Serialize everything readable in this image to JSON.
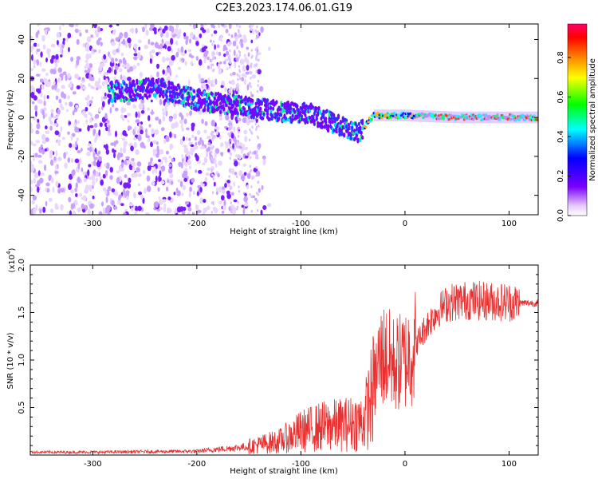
{
  "figure": {
    "title": "C2E3.2023.174.06.01.G19"
  },
  "chart_data": [
    {
      "type": "heatmap",
      "title": "C2E3.2023.174.06.01.G19",
      "xlabel": "Height of straight line (km)",
      "ylabel": "Frequency (Hz)",
      "xlim": [
        -360,
        128
      ],
      "ylim": [
        -50,
        48
      ],
      "xticks": [
        -300,
        -200,
        -100,
        0,
        100
      ],
      "yticks": [
        -40,
        -20,
        0,
        20,
        40
      ],
      "colorbar": {
        "label": "Normalized spectral amplitude",
        "range": [
          0,
          0.97
        ],
        "ticks": [
          "0.0",
          "0.2",
          "0.4",
          "0.6",
          "0.8"
        ],
        "colormap": [
          "#ffffff",
          "#7b00ff",
          "#0000ff",
          "#00ffff",
          "#00ff00",
          "#ffff00",
          "#ff7f00",
          "#ff0000",
          "#ff0066"
        ]
      },
      "ridge": {
        "x": [
          -280,
          -240,
          -200,
          -160,
          -120,
          -90,
          -60,
          -45,
          -30,
          0,
          50,
          100,
          128
        ],
        "y": [
          13,
          15,
          9,
          6,
          3,
          2,
          -5,
          -8,
          1,
          1,
          0,
          0,
          0
        ]
      }
    },
    {
      "type": "line",
      "xlabel": "Height of straight line (km)",
      "ylabel": "SNR (10 * v/v)",
      "yunit_label": "(x10^4)",
      "xlim": [
        -360,
        128
      ],
      "ylim": [
        0,
        20000
      ],
      "xticks": [
        -300,
        -200,
        -100,
        0,
        100
      ],
      "yticks": [
        5000,
        10000,
        15000,
        20000
      ],
      "ytick_labels": [
        "0.5",
        "1.0",
        "1.5",
        "2.0"
      ],
      "color": "#e83030",
      "series": [
        {
          "x": [
            -360,
            -300,
            -250,
            -200,
            -180,
            -150,
            -120,
            -100,
            -80,
            -60,
            -40,
            -30,
            -25,
            -20,
            -15,
            -10,
            0,
            10,
            20,
            30,
            40,
            50,
            60,
            80,
            100,
            110,
            128
          ],
          "y": [
            300,
            300,
            350,
            400,
            600,
            900,
            1500,
            2500,
            3000,
            3200,
            3500,
            7000,
            10000,
            10500,
            10000,
            9500,
            10000,
            11500,
            13500,
            15000,
            16000,
            16200,
            16300,
            16200,
            16100,
            16000,
            16000
          ]
        }
      ]
    }
  ]
}
